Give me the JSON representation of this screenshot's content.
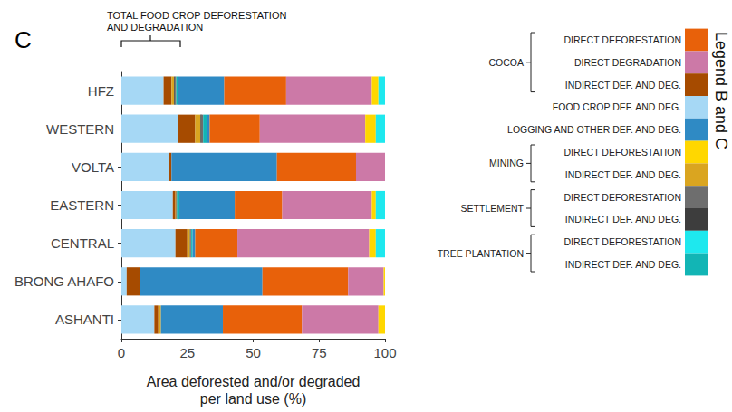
{
  "chart_data": {
    "type": "bar",
    "orientation": "horizontal",
    "stacked": true,
    "panel_label": "C",
    "annotations": [
      {
        "text": "TOTAL FOOD CROP DEFORESTATION AND DEGRADATION"
      }
    ],
    "legend_title": "Legend B and C",
    "x_label": "Area deforested and/or degraded\nper land use (%)",
    "categories": [
      "HFZ",
      "WESTERN",
      "VOLTA",
      "EASTERN",
      "CENTRAL",
      "BRONG AHAFO",
      "ASHANTI"
    ],
    "xlim": [
      0,
      100
    ],
    "xticks": [
      0,
      25,
      50,
      75,
      100
    ],
    "grid": false,
    "legend": "right",
    "series": [
      {
        "name": "DIRECT DEFORESTATION",
        "group": "COCOA",
        "color": "#e8610a",
        "values": [
          23.5,
          19,
          30,
          18,
          16,
          32.5,
          30
        ]
      },
      {
        "name": "DIRECT DEGRADATION",
        "group": "COCOA",
        "color": "#cc79a7",
        "values": [
          32.5,
          40,
          11,
          34,
          50,
          13.5,
          29
        ]
      },
      {
        "name": "INDIRECT DEF. AND DEG.",
        "group": "COCOA",
        "color": "#a64b00",
        "values": [
          3,
          6.5,
          1,
          1,
          4.5,
          5,
          1.5
        ]
      },
      {
        "name": "FOOD CROP DEF. AND DEG.",
        "color": "#a6d8f5",
        "values": [
          16,
          21.5,
          18,
          19.5,
          20.5,
          2,
          12.5
        ]
      },
      {
        "name": "LOGGING AND OTHER DEF. AND DEG.",
        "color": "#2f8ac4",
        "values": [
          17.5,
          1,
          40,
          21,
          1,
          46.5,
          23.5
        ]
      },
      {
        "name": "DIRECT DEFORESTATION",
        "group": "MINING",
        "color": "#ffd700",
        "values": [
          2.5,
          4,
          0,
          1.5,
          2.5,
          0.5,
          2.5
        ]
      },
      {
        "name": "INDIRECT DEF. AND DEG.",
        "group": "MINING",
        "color": "#daa520",
        "values": [
          1,
          2,
          0,
          0.3,
          1,
          0,
          1
        ]
      },
      {
        "name": "DIRECT DEFORESTATION",
        "group": "SETTLEMENT",
        "color": "#6e6e6e",
        "values": [
          0.3,
          0.5,
          0,
          0,
          0.3,
          0,
          0
        ]
      },
      {
        "name": "INDIRECT DEF. AND DEG.",
        "group": "SETTLEMENT",
        "color": "#3d3d3d",
        "values": [
          0.5,
          0.5,
          0,
          0.3,
          0.2,
          0,
          0
        ]
      },
      {
        "name": "DIRECT DEFORESTATION",
        "group": "TREE PLANTATION",
        "color": "#1ee8ee",
        "values": [
          2.5,
          3.5,
          0,
          3.5,
          3.5,
          0,
          0
        ]
      },
      {
        "name": "INDIRECT DEF. AND DEG.",
        "group": "TREE PLANTATION",
        "color": "#12b5b5",
        "values": [
          0.7,
          1.5,
          0,
          0.9,
          0.5,
          0,
          0
        ]
      }
    ]
  }
}
